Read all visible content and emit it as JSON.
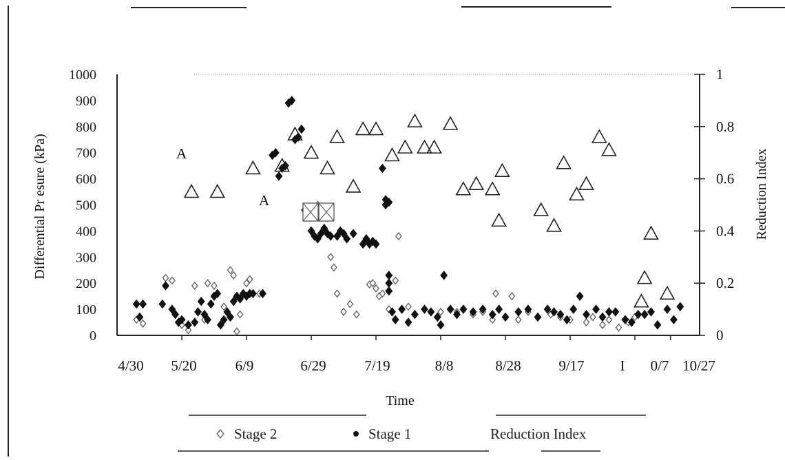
{
  "chart_data": {
    "type": "scatter",
    "title": "",
    "xlabel": "Time",
    "ylabel_left": "Differential Pr esure (kPa)",
    "ylabel_right": "Reduction Index",
    "x_tick_labels": [
      "4/30",
      "5/20",
      "6/9",
      "6/29",
      "7/19",
      "8/8",
      "8/28",
      "9/17",
      "I",
      "0/7",
      "10/27"
    ],
    "y_left_range": [
      0,
      1000
    ],
    "y_left_ticks": [
      "0",
      "100",
      "200",
      "300",
      "400",
      "500",
      "600",
      "700",
      "800",
      "900",
      "1000"
    ],
    "y_right_range": [
      0,
      1
    ],
    "y_right_ticks": [
      "0",
      "0.2",
      "0.4",
      "0.6",
      "0.8",
      "1"
    ],
    "x_range_days_from_4_30": [
      0,
      180
    ],
    "grid": false,
    "legend_position": "bottom",
    "series": [
      {
        "name": "Stage 2",
        "marker": "open-diamond",
        "axis": "left",
        "points": [
          [
            6,
            60
          ],
          [
            8,
            45
          ],
          [
            15,
            220
          ],
          [
            17,
            210
          ],
          [
            20,
            40
          ],
          [
            22,
            20
          ],
          [
            24,
            190
          ],
          [
            27,
            60
          ],
          [
            28,
            200
          ],
          [
            30,
            190
          ],
          [
            33,
            110
          ],
          [
            35,
            250
          ],
          [
            36,
            230
          ],
          [
            37,
            15
          ],
          [
            38,
            80
          ],
          [
            40,
            200
          ],
          [
            41,
            215
          ],
          [
            44,
            160
          ],
          [
            62,
            500
          ],
          [
            64,
            480
          ],
          [
            65,
            450
          ],
          [
            66,
            300
          ],
          [
            67,
            260
          ],
          [
            68,
            160
          ],
          [
            70,
            90
          ],
          [
            72,
            120
          ],
          [
            74,
            80
          ],
          [
            78,
            195
          ],
          [
            79,
            200
          ],
          [
            80,
            180
          ],
          [
            81,
            150
          ],
          [
            82,
            160
          ],
          [
            84,
            100
          ],
          [
            86,
            210
          ],
          [
            87,
            380
          ],
          [
            90,
            110
          ],
          [
            95,
            100
          ],
          [
            100,
            90
          ],
          [
            105,
            90
          ],
          [
            110,
            80
          ],
          [
            113,
            90
          ],
          [
            116,
            60
          ],
          [
            117,
            160
          ],
          [
            122,
            150
          ],
          [
            124,
            60
          ],
          [
            127,
            90
          ],
          [
            130,
            70
          ],
          [
            134,
            80
          ],
          [
            137,
            70
          ],
          [
            140,
            60
          ],
          [
            145,
            50
          ],
          [
            147,
            70
          ],
          [
            150,
            40
          ],
          [
            152,
            60
          ],
          [
            155,
            30
          ],
          [
            158,
            50
          ],
          [
            160,
            70
          ]
        ]
      },
      {
        "name": "Stage 1",
        "marker": "filled-diamond",
        "axis": "left",
        "points": [
          [
            6,
            120
          ],
          [
            8,
            120
          ],
          [
            7,
            70
          ],
          [
            14,
            120
          ],
          [
            15,
            190
          ],
          [
            17,
            100
          ],
          [
            18,
            80
          ],
          [
            19,
            50
          ],
          [
            20,
            60
          ],
          [
            22,
            40
          ],
          [
            24,
            50
          ],
          [
            25,
            90
          ],
          [
            26,
            130
          ],
          [
            27,
            80
          ],
          [
            28,
            60
          ],
          [
            29,
            120
          ],
          [
            30,
            150
          ],
          [
            31,
            160
          ],
          [
            32,
            40
          ],
          [
            33,
            60
          ],
          [
            34,
            90
          ],
          [
            35,
            70
          ],
          [
            36,
            130
          ],
          [
            37,
            150
          ],
          [
            38,
            140
          ],
          [
            39,
            160
          ],
          [
            40,
            150
          ],
          [
            41,
            160
          ],
          [
            42,
            160
          ],
          [
            45,
            160
          ],
          [
            48,
            690
          ],
          [
            49,
            700
          ],
          [
            50,
            610
          ],
          [
            51,
            640
          ],
          [
            52,
            650
          ],
          [
            53,
            890
          ],
          [
            54,
            900
          ],
          [
            55,
            750
          ],
          [
            56,
            760
          ],
          [
            57,
            790
          ],
          [
            58,
            480
          ],
          [
            60,
            400
          ],
          [
            61,
            380
          ],
          [
            62,
            370
          ],
          [
            63,
            390
          ],
          [
            64,
            410
          ],
          [
            65,
            390
          ],
          [
            66,
            380
          ],
          [
            68,
            380
          ],
          [
            69,
            400
          ],
          [
            70,
            390
          ],
          [
            71,
            370
          ],
          [
            73,
            390
          ],
          [
            76,
            350
          ],
          [
            77,
            370
          ],
          [
            78,
            350
          ],
          [
            79,
            360
          ],
          [
            80,
            350
          ],
          [
            82,
            640
          ],
          [
            83,
            520
          ],
          [
            83,
            500
          ],
          [
            84,
            510
          ],
          [
            84,
            230
          ],
          [
            84,
            200
          ],
          [
            84,
            170
          ],
          [
            85,
            90
          ],
          [
            86,
            60
          ],
          [
            88,
            100
          ],
          [
            90,
            50
          ],
          [
            92,
            80
          ],
          [
            95,
            100
          ],
          [
            97,
            90
          ],
          [
            99,
            70
          ],
          [
            100,
            40
          ],
          [
            101,
            230
          ],
          [
            103,
            100
          ],
          [
            105,
            80
          ],
          [
            107,
            100
          ],
          [
            110,
            90
          ],
          [
            113,
            100
          ],
          [
            116,
            80
          ],
          [
            118,
            100
          ],
          [
            120,
            70
          ],
          [
            124,
            90
          ],
          [
            127,
            100
          ],
          [
            130,
            70
          ],
          [
            133,
            100
          ],
          [
            135,
            90
          ],
          [
            137,
            80
          ],
          [
            139,
            60
          ],
          [
            141,
            100
          ],
          [
            143,
            150
          ],
          [
            145,
            80
          ],
          [
            148,
            100
          ],
          [
            150,
            70
          ],
          [
            152,
            90
          ],
          [
            154,
            90
          ],
          [
            157,
            60
          ],
          [
            159,
            50
          ],
          [
            161,
            80
          ],
          [
            163,
            80
          ],
          [
            165,
            90
          ],
          [
            167,
            40
          ],
          [
            170,
            100
          ],
          [
            172,
            60
          ],
          [
            174,
            110
          ]
        ]
      },
      {
        "name": "Reduction Index",
        "marker": "open-triangle",
        "axis": "right",
        "points": [
          [
            23,
            0.55
          ],
          [
            31,
            0.55
          ],
          [
            42,
            0.64
          ],
          [
            51,
            0.65
          ],
          [
            55,
            0.77
          ],
          [
            60,
            0.7
          ],
          [
            65,
            0.64
          ],
          [
            68,
            0.76
          ],
          [
            73,
            0.57
          ],
          [
            76,
            0.79
          ],
          [
            80,
            0.79
          ],
          [
            85,
            0.69
          ],
          [
            89,
            0.72
          ],
          [
            92,
            0.82
          ],
          [
            95,
            0.72
          ],
          [
            98,
            0.72
          ],
          [
            103,
            0.81
          ],
          [
            107,
            0.56
          ],
          [
            111,
            0.58
          ],
          [
            116,
            0.56
          ],
          [
            118,
            0.44
          ],
          [
            119,
            0.63
          ],
          [
            131,
            0.48
          ],
          [
            135,
            0.42
          ],
          [
            138,
            0.66
          ],
          [
            142,
            0.54
          ],
          [
            145,
            0.58
          ],
          [
            149,
            0.76
          ],
          [
            152,
            0.71
          ],
          [
            162,
            0.13
          ],
          [
            163,
            0.22
          ],
          [
            165,
            0.39
          ],
          [
            170,
            0.16
          ]
        ]
      }
    ],
    "annotations": [
      "A",
      "A"
    ],
    "colors": {
      "stage2": "#666666",
      "stage1": "#111111",
      "reduction": "#222222",
      "axis": "#222222"
    }
  }
}
